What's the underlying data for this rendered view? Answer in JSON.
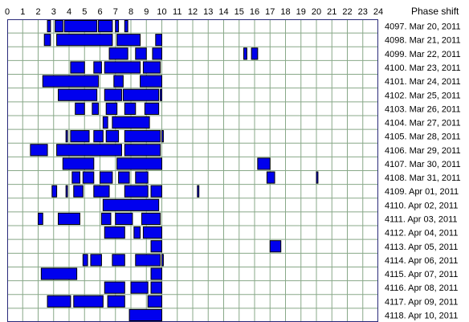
{
  "chart_data": {
    "type": "timeline",
    "header": "Phase shift",
    "x_ticks": [
      "0",
      "1",
      "2",
      "3",
      "4",
      "5",
      "6",
      "7",
      "8",
      "9",
      "10",
      "11",
      "12",
      "13",
      "14",
      "15",
      "16",
      "17",
      "18",
      "19",
      "20",
      "21",
      "22",
      "23",
      "24"
    ],
    "xlim": [
      0,
      24
    ],
    "grid": true,
    "bar_color": "#0000ee",
    "grid_color": "#88a888",
    "rows": [
      {
        "label": "4097. Mar 20, 2011",
        "segments": [
          [
            2.6,
            2.8
          ],
          [
            3.1,
            3.6
          ],
          [
            3.7,
            5.8
          ],
          [
            5.9,
            6.8
          ],
          [
            7.0,
            7.2
          ],
          [
            7.6,
            7.8
          ]
        ]
      },
      {
        "label": "4098. Mar 21, 2011",
        "segments": [
          [
            2.4,
            2.8
          ],
          [
            3.2,
            6.8
          ],
          [
            7.1,
            8.6
          ],
          [
            9.6,
            10.0
          ]
        ]
      },
      {
        "label": "4099. Mar 22, 2011",
        "segments": [
          [
            6.6,
            7.8
          ],
          [
            8.3,
            9.0
          ],
          [
            9.4,
            10.0
          ],
          [
            15.3,
            15.5
          ],
          [
            15.8,
            16.2
          ]
        ]
      },
      {
        "label": "4100. Mar 23, 2011",
        "segments": [
          [
            4.1,
            5.0
          ],
          [
            5.6,
            6.1
          ],
          [
            6.3,
            8.6
          ],
          [
            8.8,
            9.9
          ]
        ]
      },
      {
        "label": "4101. Mar 24, 2011",
        "segments": [
          [
            2.3,
            5.9
          ],
          [
            6.9,
            7.5
          ],
          [
            8.6,
            10.0
          ]
        ]
      },
      {
        "label": "4102. Mar 25, 2011",
        "segments": [
          [
            3.3,
            5.8
          ],
          [
            6.3,
            7.4
          ],
          [
            7.5,
            9.8
          ],
          [
            9.9,
            10.0
          ]
        ]
      },
      {
        "label": "4103. Mar 26, 2011",
        "segments": [
          [
            4.4,
            5.0
          ],
          [
            5.5,
            5.9
          ],
          [
            6.4,
            7.1
          ],
          [
            7.6,
            8.3
          ],
          [
            8.9,
            9.8
          ]
        ]
      },
      {
        "label": "4104. Mar 27, 2011",
        "segments": [
          [
            6.2,
            6.5
          ],
          [
            6.8,
            9.2
          ]
        ]
      },
      {
        "label": "4105. Mar 28, 2011",
        "segments": [
          [
            3.8,
            3.9
          ],
          [
            4.1,
            5.3
          ],
          [
            5.6,
            6.2
          ],
          [
            6.4,
            7.2
          ],
          [
            7.6,
            9.9
          ],
          [
            10.0,
            10.1
          ]
        ]
      },
      {
        "label": "4106. Mar 29, 2011",
        "segments": [
          [
            1.5,
            2.6
          ],
          [
            3.2,
            7.4
          ],
          [
            7.6,
            9.9
          ]
        ]
      },
      {
        "label": "4107. Mar 30, 2011",
        "segments": [
          [
            3.6,
            5.6
          ],
          [
            7.1,
            10.0
          ],
          [
            16.2,
            17.0
          ]
        ]
      },
      {
        "label": "4108. Mar 31, 2011",
        "segments": [
          [
            4.2,
            4.7
          ],
          [
            4.9,
            5.6
          ],
          [
            6.0,
            6.8
          ],
          [
            7.2,
            7.9
          ],
          [
            8.3,
            9.1
          ],
          [
            16.8,
            17.3
          ],
          [
            20.0,
            20.1
          ]
        ]
      },
      {
        "label": "4109. Apr 01, 2011",
        "segments": [
          [
            2.9,
            3.2
          ],
          [
            3.8,
            3.9
          ],
          [
            4.3,
            4.9
          ],
          [
            5.6,
            6.6
          ],
          [
            7.6,
            9.1
          ],
          [
            9.3,
            10.0
          ],
          [
            12.3,
            12.4
          ]
        ]
      },
      {
        "label": "4110. Apr 02, 2011",
        "segments": [
          [
            6.2,
            9.8
          ]
        ]
      },
      {
        "label": "4111. Apr 03, 2011",
        "segments": [
          [
            2.0,
            2.3
          ],
          [
            3.3,
            4.7
          ],
          [
            6.1,
            6.7
          ],
          [
            7.0,
            8.1
          ],
          [
            8.7,
            9.9
          ]
        ]
      },
      {
        "label": "4112. Apr 04, 2011",
        "segments": [
          [
            6.3,
            7.6
          ],
          [
            8.2,
            8.6
          ],
          [
            8.8,
            10.0
          ]
        ]
      },
      {
        "label": "4113. Apr 05, 2011",
        "segments": [
          [
            9.3,
            10.0
          ],
          [
            17.0,
            17.7
          ]
        ]
      },
      {
        "label": "4114. Apr 06, 2011",
        "segments": [
          [
            4.9,
            5.2
          ],
          [
            5.4,
            6.1
          ],
          [
            6.8,
            7.6
          ],
          [
            8.3,
            9.9
          ],
          [
            10.0,
            10.1
          ]
        ]
      },
      {
        "label": "4115. Apr 07, 2011",
        "segments": [
          [
            2.2,
            4.5
          ],
          [
            9.3,
            10.0
          ]
        ]
      },
      {
        "label": "4116. Apr 08, 2011",
        "segments": [
          [
            6.3,
            7.6
          ],
          [
            8.0,
            9.1
          ],
          [
            9.3,
            10.0
          ]
        ]
      },
      {
        "label": "4117. Apr 09, 2011",
        "segments": [
          [
            2.6,
            4.1
          ],
          [
            4.3,
            6.2
          ],
          [
            6.5,
            7.6
          ],
          [
            9.1,
            10.0
          ]
        ]
      },
      {
        "label": "4118. Apr 10, 2011",
        "segments": [
          [
            7.9,
            10.0
          ]
        ]
      }
    ]
  }
}
